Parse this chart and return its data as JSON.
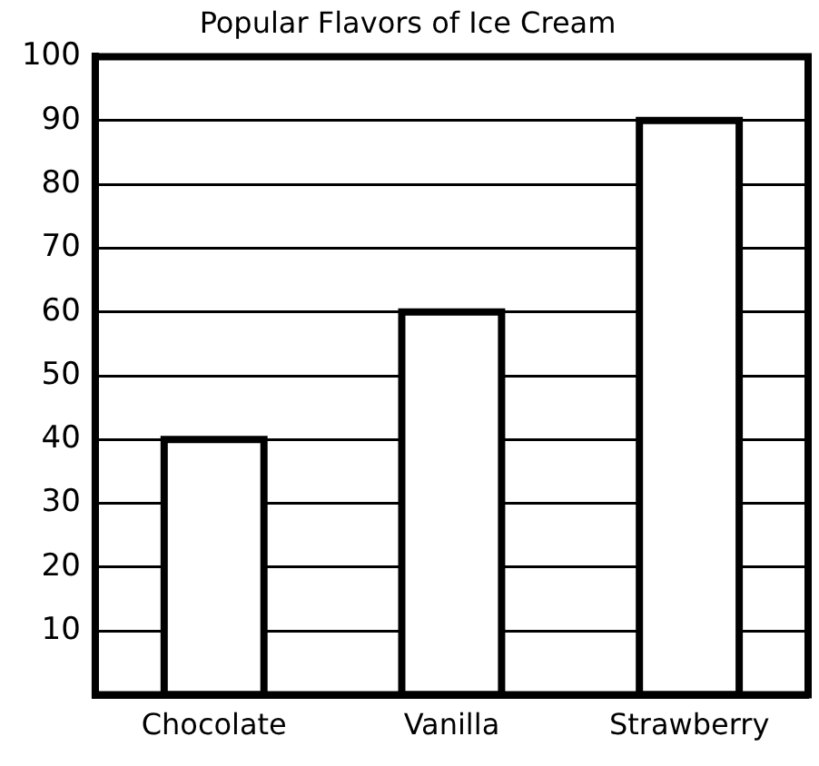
{
  "chart_data": {
    "type": "bar",
    "title": "Popular Flavors of Ice Cream",
    "categories": [
      "Chocolate",
      "Vanilla",
      "Strawberry"
    ],
    "values": [
      40,
      60,
      90
    ],
    "color": "#ffffff",
    "ylim": [
      0,
      100
    ],
    "yticks": [
      10,
      20,
      30,
      40,
      50,
      60,
      70,
      80,
      90,
      100
    ],
    "grid": "y"
  }
}
